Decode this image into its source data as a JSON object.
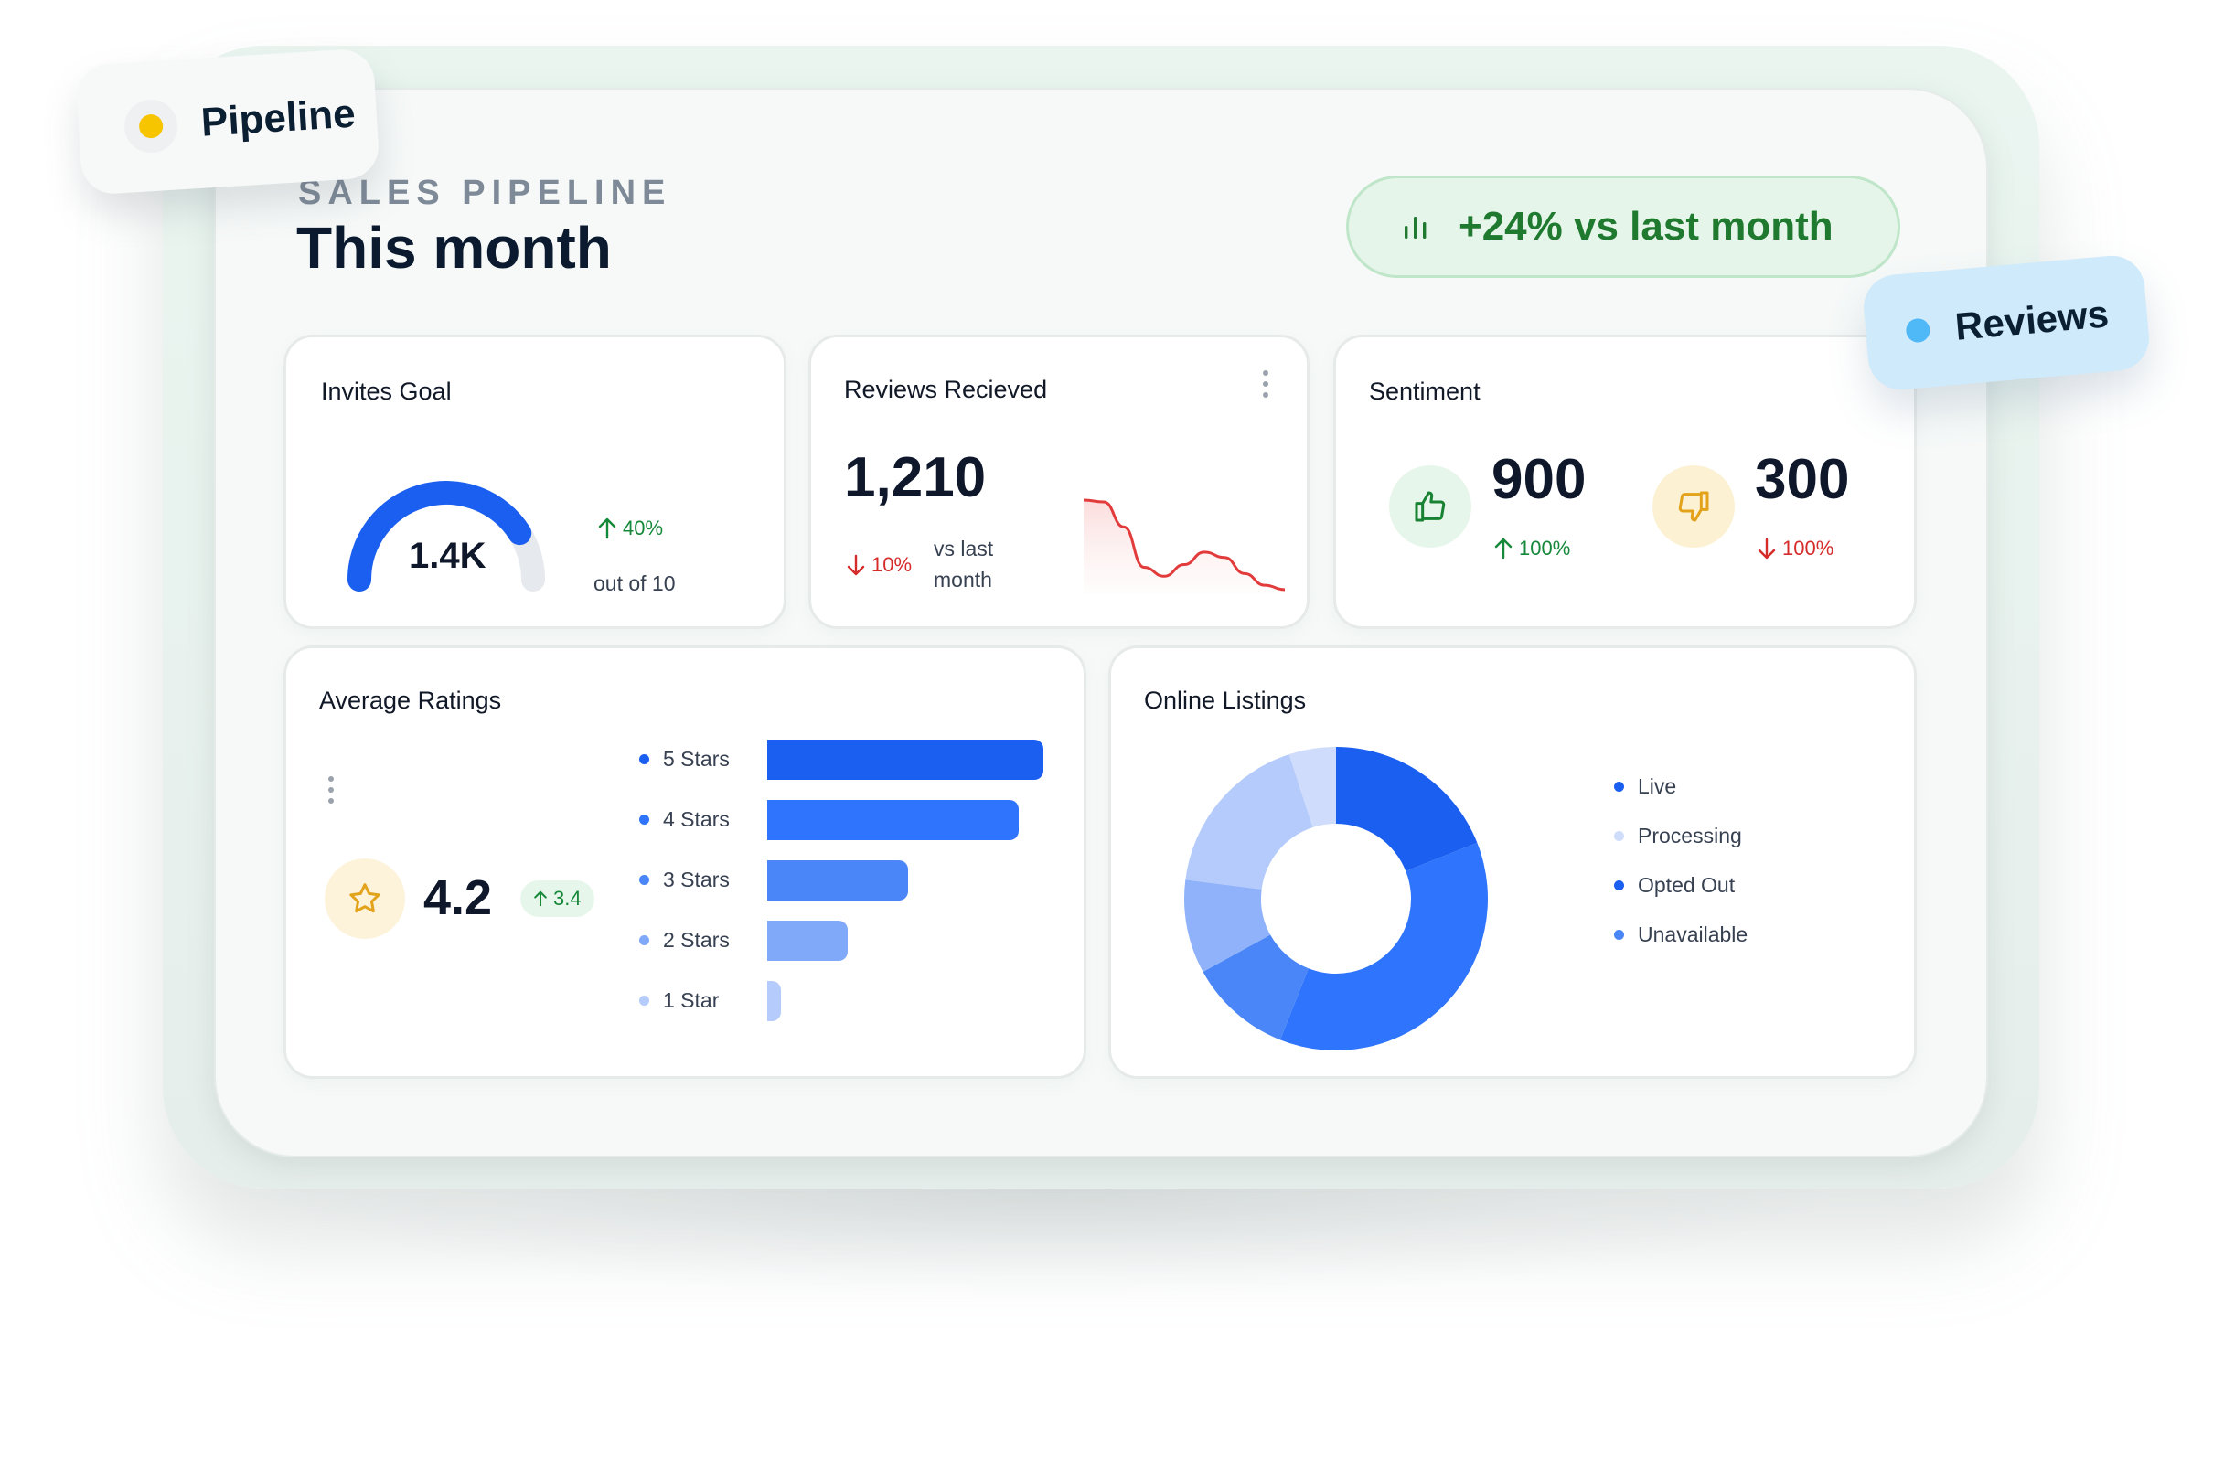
{
  "tags": {
    "pipeline": "Pipeline",
    "reviews": "Reviews"
  },
  "header": {
    "eyebrow": "SALES PIPELINE",
    "title": "This month",
    "trend": "+24% vs last month"
  },
  "invites": {
    "title": "Invites Goal",
    "value": "1.4K",
    "delta": "40%",
    "sub": "out of 10",
    "gauge_fraction": 0.82
  },
  "reviews_card": {
    "title": "Reviews Recieved",
    "value": "1,210",
    "delta": "10%",
    "compare": [
      "vs last",
      "month"
    ]
  },
  "sentiment": {
    "title": "Sentiment",
    "positive": {
      "value": "900",
      "delta": "100%",
      "icon": "thumbs-up-icon"
    },
    "negative": {
      "value": "300",
      "delta": "100%",
      "icon": "thumbs-down-icon"
    }
  },
  "ratings": {
    "title": "Average Ratings",
    "value": "4.2",
    "badge": "3.4",
    "items": [
      {
        "label": "5 Stars",
        "fraction": 1.0,
        "color": "#1b5ff0"
      },
      {
        "label": "4 Stars",
        "fraction": 0.91,
        "color": "#2f74fc"
      },
      {
        "label": "3 Stars",
        "fraction": 0.51,
        "color": "#4a86f7"
      },
      {
        "label": "2 Stars",
        "fraction": 0.29,
        "color": "#80a9fa"
      },
      {
        "label": "1 Star",
        "fraction": 0.05,
        "color": "#b4cbfb"
      }
    ]
  },
  "listings": {
    "title": "Online Listings",
    "legend": [
      {
        "label": "Live",
        "color": "#1b5ff0"
      },
      {
        "label": "Processing",
        "color": "#cfdcfb"
      },
      {
        "label": "Opted Out",
        "color": "#1b5ff0"
      },
      {
        "label": "Unavailable",
        "color": "#4a86f7"
      }
    ]
  },
  "chart_data": [
    {
      "type": "bar",
      "orientation": "horizontal",
      "categories": [
        "5 Stars",
        "4 Stars",
        "3 Stars",
        "2 Stars",
        "1 Star"
      ],
      "values": [
        100,
        91,
        51,
        29,
        5
      ],
      "grid": false
    },
    {
      "type": "pie",
      "donut": true,
      "slices": [
        {
          "value": 19,
          "color": "#1b5ff0"
        },
        {
          "value": 37,
          "color": "#2f74fc"
        },
        {
          "value": 11,
          "color": "#4a86f7"
        },
        {
          "value": 10,
          "color": "#8fb2fa"
        },
        {
          "value": 18,
          "color": "#b4cbfb"
        },
        {
          "value": 5,
          "color": "#cfdcfb"
        }
      ],
      "legend": "right"
    },
    {
      "type": "line",
      "area": true,
      "x": [
        0,
        1,
        2,
        3,
        4,
        5,
        6,
        7,
        8,
        9,
        10
      ],
      "values": [
        100,
        98,
        70,
        25,
        15,
        28,
        42,
        36,
        18,
        5,
        0
      ],
      "color": "#e23b3b",
      "grid": false
    }
  ]
}
